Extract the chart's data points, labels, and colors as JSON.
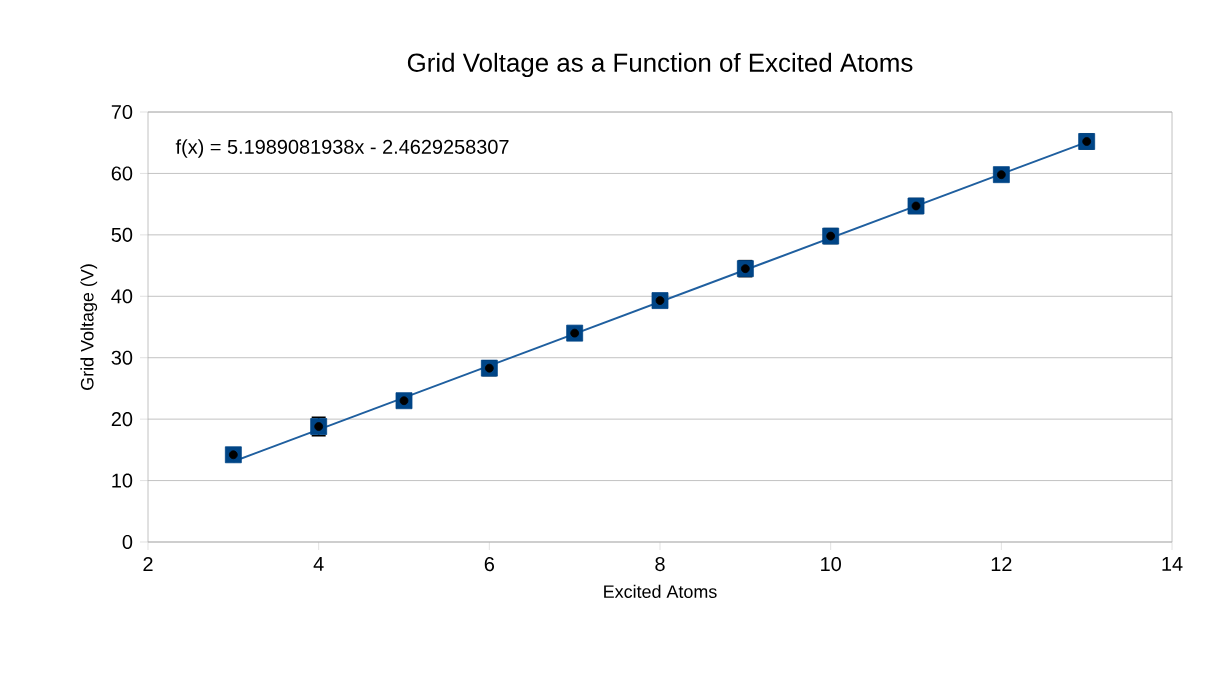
{
  "chart_data": {
    "type": "scatter",
    "title": "Grid Voltage as a Function of Excited Atoms",
    "xlabel": "Excited Atoms",
    "ylabel": "Grid Voltage (V)",
    "series": [
      {
        "color": "#004586",
        "marker": "square",
        "x": [
          3,
          4,
          5,
          6,
          7,
          8,
          9,
          10,
          11,
          12,
          13
        ],
        "values": [
          14.2,
          18.8,
          23,
          28.3,
          34,
          39.3,
          44.5,
          49.8,
          54.7,
          59.8,
          65.2
        ],
        "errors": [
          0.8,
          1.5,
          1,
          1.2,
          0.6,
          0.8,
          1.3,
          1.2,
          1.2,
          1,
          1.2
        ]
      },
      {
        "type": "line",
        "color": "#1f5f9f",
        "x": [
          3,
          13
        ],
        "values": [
          13.1,
          65.1
        ]
      }
    ],
    "annotations": [
      "f(x) = 5.1989081938x - 2.4629258307"
    ],
    "xlim": [
      2,
      14
    ],
    "ylim": [
      0,
      70
    ],
    "xticks": [
      2,
      4,
      6,
      8,
      10,
      12,
      14
    ],
    "yticks": [
      0,
      10,
      20,
      30,
      40,
      50,
      60,
      70
    ],
    "grid": "y"
  }
}
